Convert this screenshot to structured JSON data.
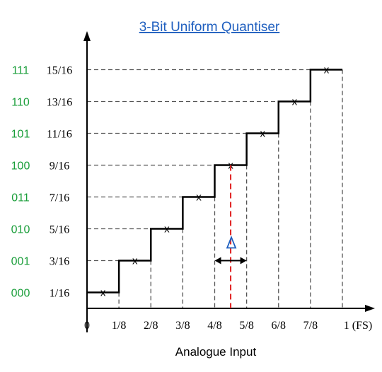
{
  "title": "3-Bit Uniform Quantiser",
  "xlabel": "Analogue Input",
  "colors": {
    "axis": "#000000",
    "guide": "#555555",
    "code_text": "#1a9e3a",
    "error_line": "#e02020",
    "delta_marker": "#1f5fbf",
    "title": "#1f5fbf"
  },
  "chart_data": {
    "type": "line",
    "x_ticks": [
      "0",
      "1/8",
      "2/8",
      "3/8",
      "4/8",
      "5/8",
      "6/8",
      "7/8",
      "1 (FS)"
    ],
    "x_tick_values": [
      0,
      0.125,
      0.25,
      0.375,
      0.5,
      0.625,
      0.75,
      0.875,
      1.0
    ],
    "levels": [
      "1/16",
      "3/16",
      "5/16",
      "7/16",
      "9/16",
      "11/16",
      "13/16",
      "15/16"
    ],
    "level_values": [
      0.0625,
      0.1875,
      0.3125,
      0.4375,
      0.5625,
      0.6875,
      0.8125,
      0.9375
    ],
    "codes": [
      "000",
      "001",
      "010",
      "011",
      "100",
      "101",
      "110",
      "111"
    ],
    "steps": [
      {
        "x_start": 0,
        "x_end": 0.125,
        "y": 0.0625
      },
      {
        "x_start": 0.125,
        "x_end": 0.25,
        "y": 0.1875
      },
      {
        "x_start": 0.25,
        "x_end": 0.375,
        "y": 0.3125
      },
      {
        "x_start": 0.375,
        "x_end": 0.5,
        "y": 0.4375
      },
      {
        "x_start": 0.5,
        "x_end": 0.625,
        "y": 0.5625
      },
      {
        "x_start": 0.625,
        "x_end": 0.75,
        "y": 0.6875
      },
      {
        "x_start": 0.75,
        "x_end": 0.875,
        "y": 0.8125
      },
      {
        "x_start": 0.875,
        "x_end": 1.0,
        "y": 0.9375
      }
    ],
    "markers": [
      {
        "x": 0.0625,
        "y": 0.0625,
        "label": "x"
      },
      {
        "x": 0.1875,
        "y": 0.1875,
        "label": "x"
      },
      {
        "x": 0.3125,
        "y": 0.3125,
        "label": "x"
      },
      {
        "x": 0.4375,
        "y": 0.4375,
        "label": "x"
      },
      {
        "x": 0.5625,
        "y": 0.5625,
        "label": "x"
      },
      {
        "x": 0.6875,
        "y": 0.6875,
        "label": "x"
      },
      {
        "x": 0.8125,
        "y": 0.8125,
        "label": "x"
      },
      {
        "x": 0.9375,
        "y": 0.9375,
        "label": "x"
      }
    ],
    "error_line": {
      "x": 0.5625,
      "y_from": 0,
      "y_to": 0.5625
    },
    "delta_range": {
      "x_from": 0.5,
      "x_to": 0.625,
      "y": 0.1875,
      "label": "Δ"
    },
    "xlim": [
      0,
      1.0
    ],
    "ylim": [
      0,
      1.0
    ],
    "grid": false
  }
}
